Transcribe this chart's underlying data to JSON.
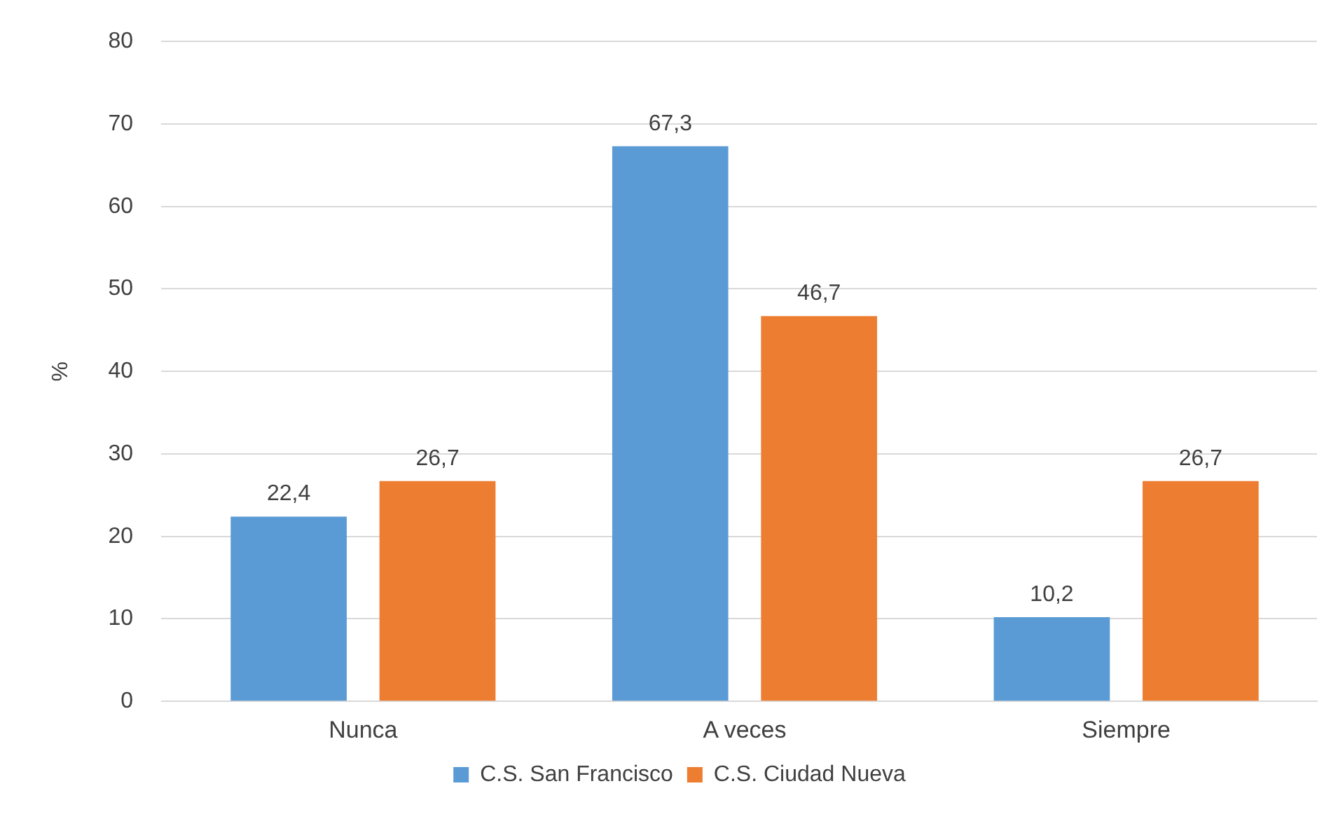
{
  "chart_data": {
    "type": "bar",
    "ylabel": "%",
    "categories": [
      "Nunca",
      "A veces",
      "Siempre"
    ],
    "series": [
      {
        "name": "C.S. San Francisco",
        "color": "#5b9bd5",
        "values": [
          22.4,
          67.3,
          10.2
        ],
        "value_labels": [
          "22,4",
          "67,3",
          "10,2"
        ]
      },
      {
        "name": "C.S. Ciudad Nueva",
        "color": "#ed7d31",
        "values": [
          26.7,
          46.7,
          26.7
        ],
        "value_labels": [
          "26,7",
          "46,7",
          "26,7"
        ]
      }
    ],
    "ylim": [
      0,
      80
    ],
    "yticks": [
      0,
      10,
      20,
      30,
      40,
      50,
      60,
      70,
      80
    ],
    "grid": "y",
    "legend": "bottom"
  }
}
